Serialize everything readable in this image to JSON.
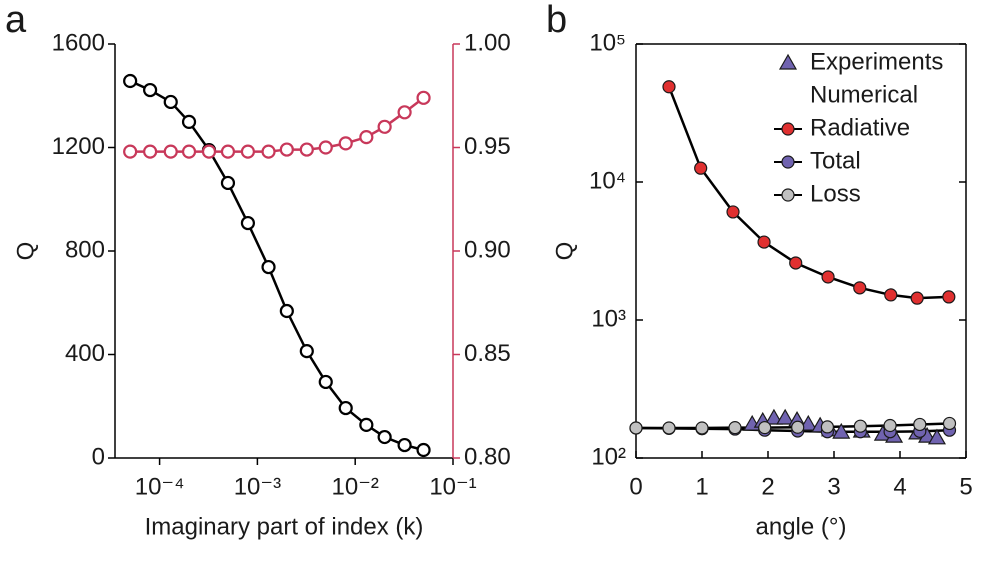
{
  "chart_data": [
    {
      "type": "line",
      "panel_label": "a",
      "xlabel": "Imaginary part of index (k)",
      "ylabel": "Q",
      "xscale": "log",
      "xlim": [
        3.5e-05,
        0.1
      ],
      "xticks": [
        {
          "value": 0.0001,
          "label": "10⁻⁴"
        },
        {
          "value": 0.001,
          "label": "10⁻³"
        },
        {
          "value": 0.01,
          "label": "10⁻²"
        },
        {
          "value": 0.1,
          "label": "10⁻¹"
        }
      ],
      "ylim": [
        0,
        1600
      ],
      "yticks": [
        0,
        400,
        800,
        1200,
        1600
      ],
      "y2lim": [
        0.8,
        1.0
      ],
      "y2ticks": [
        {
          "value": 0.8,
          "label": "0.80"
        },
        0.85,
        {
          "value": 0.9,
          "label": "0.90"
        },
        0.95,
        {
          "value": 1.0,
          "label": "1.00"
        }
      ],
      "y2color": "#c8385a",
      "series": [
        {
          "color": "#000000",
          "marker": "open-circle",
          "line": true,
          "x": [
            5e-05,
            8e-05,
            0.00013,
            0.0002,
            0.00032,
            0.0005,
            0.0008,
            0.0013,
            0.002,
            0.0032,
            0.005,
            0.008,
            0.013,
            0.02,
            0.032,
            0.05
          ],
          "values": [
            1457,
            1422,
            1376,
            1299,
            1190,
            1063,
            908,
            738,
            568,
            413,
            294,
            193,
            128,
            81,
            50,
            31
          ]
        },
        {
          "color": "#c8385a",
          "marker": "open-circle",
          "line": true,
          "axis": "y2",
          "x": [
            5e-05,
            8e-05,
            0.00013,
            0.0002,
            0.00032,
            0.0005,
            0.0008,
            0.0013,
            0.002,
            0.0032,
            0.005,
            0.008,
            0.013,
            0.02,
            0.032,
            0.05
          ],
          "values": [
            0.948,
            0.948,
            0.948,
            0.948,
            0.948,
            0.948,
            0.948,
            0.948,
            0.949,
            0.949,
            0.95,
            0.952,
            0.955,
            0.96,
            0.967,
            0.974
          ]
        }
      ]
    },
    {
      "type": "scatter",
      "panel_label": "b",
      "xlabel": "angle (°)",
      "ylabel": "Q",
      "xscale": "linear",
      "xlim": [
        0,
        5
      ],
      "xticks": [
        0,
        1,
        2,
        3,
        4,
        5
      ],
      "yscale": "log",
      "ylim": [
        100,
        100000
      ],
      "yticks": [
        {
          "value": 100,
          "label": "10²"
        },
        {
          "value": 1000,
          "label": "10³"
        },
        {
          "value": 10000,
          "label": "10⁴"
        },
        {
          "value": 100000,
          "label": "10⁵"
        }
      ],
      "legend": "upper right",
      "legend_subtitle": "Numerical",
      "series": [
        {
          "name": "Experiments",
          "color": "#7063b0",
          "marker": "triangle",
          "line": false,
          "x": [
            1.76,
            1.92,
            2.09,
            2.26,
            2.44,
            2.61,
            2.79,
            2.94,
            3.11,
            3.42,
            3.74,
            3.91,
            4.26,
            4.41,
            4.56
          ],
          "values": [
            176,
            185,
            195,
            195,
            188,
            176,
            171,
            160,
            154,
            157,
            149,
            144,
            152,
            144,
            140
          ]
        },
        {
          "name": "Radiative",
          "color": "#e03030",
          "marker": "circle",
          "line": true,
          "x": [
            0.5,
            0.98,
            1.47,
            1.94,
            2.42,
            2.91,
            3.39,
            3.86,
            4.26,
            4.74
          ],
          "values": [
            49000,
            12600,
            6070,
            3670,
            2590,
            2050,
            1710,
            1520,
            1440,
            1470
          ]
        },
        {
          "name": "Total",
          "color": "#7063b0",
          "marker": "circle",
          "line": true,
          "x": [
            0,
            0.5,
            1.0,
            1.5,
            1.95,
            2.45,
            2.9,
            3.4,
            3.85,
            4.3,
            4.75
          ],
          "values": [
            165,
            164,
            163,
            162,
            159,
            157,
            155,
            155,
            155,
            156,
            159
          ]
        },
        {
          "name": "Loss",
          "color": "#c0c0c0",
          "marker": "circle",
          "line": true,
          "x": [
            0,
            0.5,
            1.0,
            1.5,
            1.95,
            2.45,
            2.9,
            3.4,
            3.85,
            4.3,
            4.75
          ],
          "values": [
            165,
            165,
            165,
            166,
            166,
            167,
            168,
            170,
            172,
            175,
            178
          ]
        }
      ]
    }
  ]
}
